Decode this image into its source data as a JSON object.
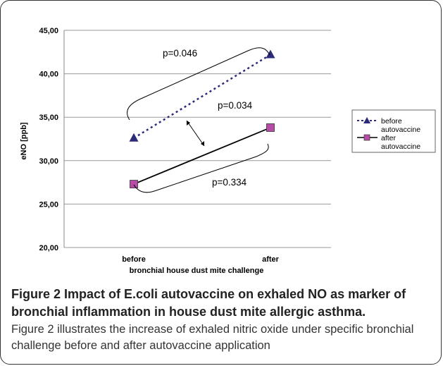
{
  "chart_data": {
    "type": "line",
    "categories": [
      "before",
      "after"
    ],
    "series": [
      {
        "name": "before autovaccine",
        "values": [
          32.6,
          42.2
        ],
        "color": "#2b2b7a",
        "line_style": "dotted",
        "marker": "triangle"
      },
      {
        "name": "after autovaccine",
        "values": [
          27.3,
          33.8
        ],
        "color": "#000000",
        "line_style": "solid",
        "marker": "square",
        "marker_color": "#b84aa8"
      }
    ],
    "yticks": [
      "20,00",
      "25,00",
      "30,00",
      "35,00",
      "40,00",
      "45,00"
    ],
    "ylim": [
      20,
      45
    ],
    "ylabel": "eNO [ppb]",
    "xlabel": "bronchial house dust mite challenge",
    "grid": "horizontal",
    "legend": "right",
    "legend_labels": [
      [
        "before",
        "autovaccine"
      ],
      [
        "after",
        "autovaccine"
      ]
    ],
    "annotations": [
      "p=0.046",
      "p=0.034",
      "p=0.334"
    ]
  },
  "caption": {
    "title": "Figure 2 Impact of E.coli autovaccine on exhaled NO as marker of bronchial inflammation in house dust mite allergic asthma.",
    "body": "Figure 2 illustrates the increase of exhaled nitric oxide under specific bronchial challenge before and after autovaccine application"
  }
}
